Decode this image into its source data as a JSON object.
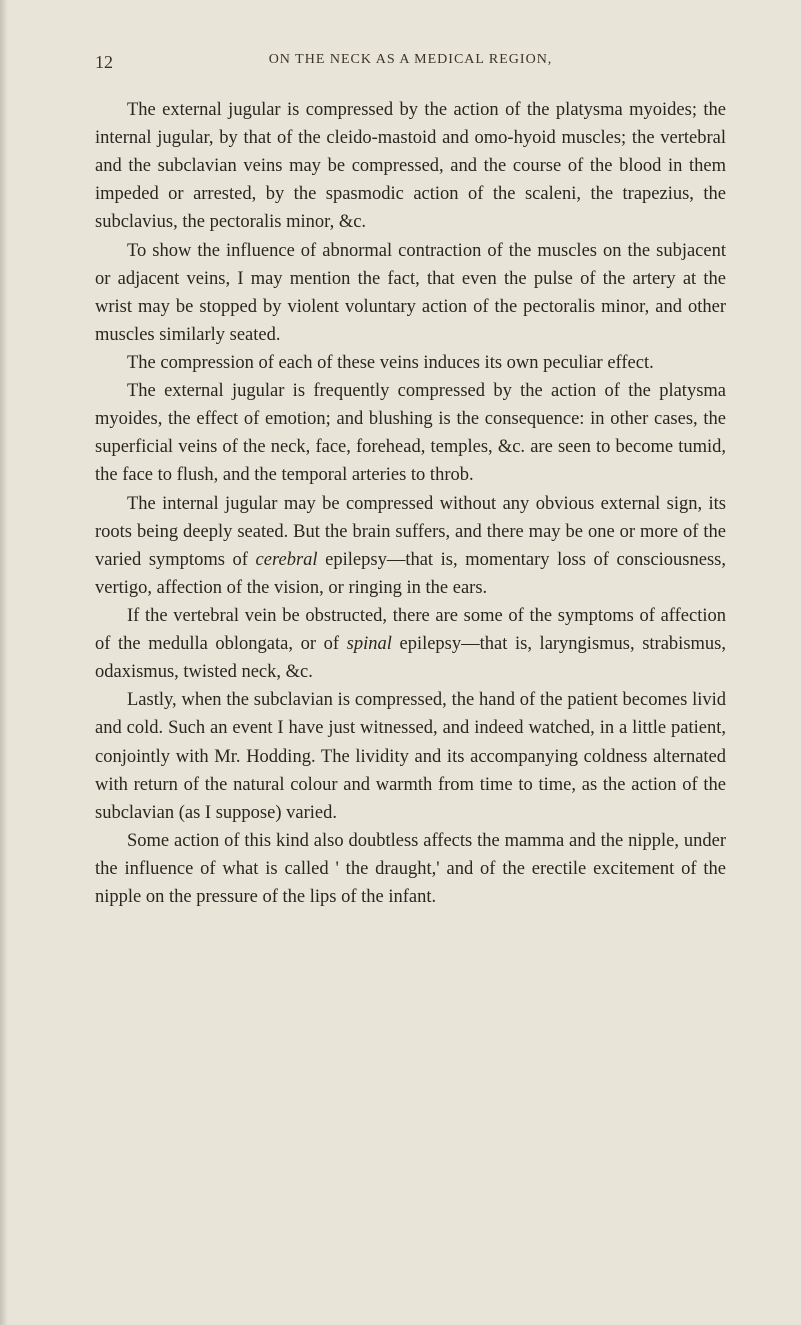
{
  "page": {
    "number": "12",
    "running_header": "ON THE NECK AS A MEDICAL REGION,",
    "background_color": "#e8e4d8",
    "text_color": "#2a2620",
    "header_color": "#3a3428",
    "body_fontsize": 18.5,
    "header_fontsize": 14,
    "pagenum_fontsize": 18
  },
  "paragraphs": [
    {
      "text": "The external jugular is compressed by the action of the platysma myoides; the internal jugular, by that of the cleido-mastoid and omo-hyoid muscles; the vertebral and the subclavian veins may be compressed, and the course of the blood in them impeded or arrested, by the spasmodic action of the scaleni, the trapezius, the subclavius, the pectoralis minor, &c."
    },
    {
      "text": "To show the influence of abnormal contraction of the muscles on the subjacent or adjacent veins, I may mention the fact, that even the pulse of the artery at the wrist may be stopped by violent voluntary action of the pectoralis minor, and other muscles similarly seated."
    },
    {
      "text": "The compression of each of these veins induces its own peculiar effect."
    },
    {
      "text": "The external jugular is frequently compressed by the action of the platysma myoides, the effect of emotion; and blushing is the consequence: in other cases, the superficial veins of the neck, face, forehead, temples, &c. are seen to become tumid, the face to flush, and the temporal arteries to throb."
    },
    {
      "text_parts": [
        {
          "t": "The internal jugular may be compressed without any obvious external sign, its roots being deeply seated. But the brain suffers, and there may be one or more of the varied symptoms of ",
          "i": false
        },
        {
          "t": "cerebral",
          "i": true
        },
        {
          "t": " epilepsy—that is, momentary loss of consciousness, vertigo, affection of the vision, or ringing in the ears.",
          "i": false
        }
      ]
    },
    {
      "text_parts": [
        {
          "t": "If the vertebral vein be obstructed, there are some of the symptoms of affection of the medulla oblongata, or of ",
          "i": false
        },
        {
          "t": "spinal",
          "i": true
        },
        {
          "t": " epilepsy—that is, laryngismus, strabismus, odaxismus, twisted neck, &c.",
          "i": false
        }
      ]
    },
    {
      "text": "Lastly, when the subclavian is compressed, the hand of the patient becomes livid and cold. Such an event I have just witnessed, and indeed watched, in a little patient, conjointly with Mr. Hodding. The lividity and its accompanying coldness alternated with return of the natural colour and warmth from time to time, as the action of the subclavian (as I suppose) varied."
    },
    {
      "text": "Some action of this kind also doubtless affects the mamma and the nipple, under the influence of what is called ' the draught,' and of the erectile excitement of the nipple on the pressure of the lips of the infant."
    }
  ]
}
